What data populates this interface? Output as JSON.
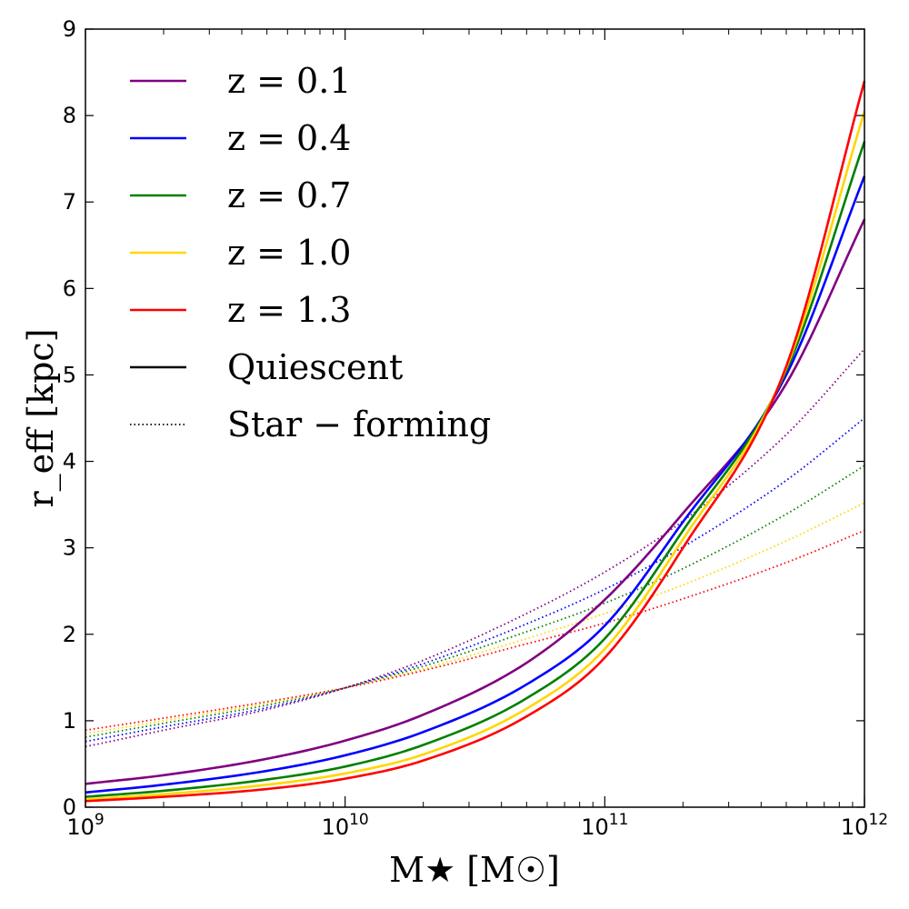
{
  "chart_data": {
    "type": "line",
    "xlabel": "M★ [M☉]",
    "ylabel": "r_eff [kpc]",
    "xscale": "log",
    "xlim": [
      1000000000,
      1000000000000
    ],
    "ylim": [
      0,
      9
    ],
    "x_ticks": [
      {
        "value": 1000000000,
        "base": "10",
        "exp": "9"
      },
      {
        "value": 10000000000,
        "base": "10",
        "exp": "10"
      },
      {
        "value": 100000000000,
        "base": "10",
        "exp": "11"
      },
      {
        "value": 1000000000000,
        "base": "10",
        "exp": "12"
      }
    ],
    "y_ticks": [
      "0",
      "1",
      "2",
      "3",
      "4",
      "5",
      "6",
      "7",
      "8",
      "9"
    ],
    "grid": false,
    "legend_position": "top-left",
    "legend": [
      {
        "label": "z = 0.1",
        "color": "#800080",
        "style": "solid"
      },
      {
        "label": "z = 0.4",
        "color": "#0000ff",
        "style": "solid"
      },
      {
        "label": "z = 0.7",
        "color": "#008000",
        "style": "solid"
      },
      {
        "label": "z = 1.0",
        "color": "#ffd700",
        "style": "solid"
      },
      {
        "label": "z = 1.3",
        "color": "#ff0000",
        "style": "solid"
      },
      {
        "label": "Quiescent",
        "color": "#000000",
        "style": "solid"
      },
      {
        "label": "Star − forming",
        "color": "#000000",
        "style": "dotted"
      }
    ],
    "x": [
      1000000000,
      2000000000,
      5000000000,
      10000000000,
      20000000000,
      50000000000,
      100000000000,
      200000000000,
      500000000000,
      1000000000000
    ],
    "series": [
      {
        "name": "z = 0.1",
        "population": "Quiescent",
        "color": "#800080",
        "style": "solid",
        "values": [
          0.27,
          0.37,
          0.56,
          0.77,
          1.07,
          1.67,
          2.4,
          3.4,
          4.9,
          6.8
        ]
      },
      {
        "name": "z = 0.4",
        "population": "Quiescent",
        "color": "#0000ff",
        "style": "solid",
        "values": [
          0.17,
          0.26,
          0.42,
          0.6,
          0.87,
          1.42,
          2.1,
          3.3,
          5.0,
          7.3
        ]
      },
      {
        "name": "z = 0.7",
        "population": "Quiescent",
        "color": "#008000",
        "style": "solid",
        "values": [
          0.12,
          0.19,
          0.32,
          0.47,
          0.72,
          1.26,
          1.95,
          3.2,
          5.05,
          7.7
        ]
      },
      {
        "name": "z = 1.0",
        "population": "Quiescent",
        "color": "#ffd700",
        "style": "solid",
        "values": [
          0.09,
          0.15,
          0.26,
          0.39,
          0.61,
          1.14,
          1.83,
          3.1,
          5.08,
          8.05
        ]
      },
      {
        "name": "z = 1.3",
        "population": "Quiescent",
        "color": "#ff0000",
        "style": "solid",
        "values": [
          0.07,
          0.12,
          0.21,
          0.33,
          0.54,
          1.05,
          1.73,
          3.0,
          5.1,
          8.4
        ]
      },
      {
        "name": "z = 0.1",
        "population": "Star − forming",
        "color": "#800080",
        "style": "dotted",
        "values": [
          0.7,
          0.89,
          1.13,
          1.38,
          1.7,
          2.24,
          2.72,
          3.31,
          4.31,
          5.3
        ]
      },
      {
        "name": "z = 0.4",
        "population": "Star − forming",
        "color": "#0000ff",
        "style": "dotted",
        "values": [
          0.76,
          0.93,
          1.15,
          1.38,
          1.66,
          2.12,
          2.52,
          3.01,
          3.78,
          4.5
        ]
      },
      {
        "name": "z = 0.7",
        "population": "Star − forming",
        "color": "#008000",
        "style": "dotted",
        "values": [
          0.81,
          0.97,
          1.18,
          1.38,
          1.63,
          2.03,
          2.36,
          2.76,
          3.39,
          3.95
        ]
      },
      {
        "name": "z = 1.0",
        "population": "Star − forming",
        "color": "#ffd700",
        "style": "dotted",
        "values": [
          0.85,
          1.0,
          1.2,
          1.38,
          1.6,
          1.95,
          2.24,
          2.57,
          3.08,
          3.52
        ]
      },
      {
        "name": "z = 1.3",
        "population": "Star − forming",
        "color": "#ff0000",
        "style": "dotted",
        "values": [
          0.89,
          1.03,
          1.22,
          1.38,
          1.58,
          1.89,
          2.13,
          2.41,
          2.83,
          3.2
        ]
      }
    ]
  }
}
